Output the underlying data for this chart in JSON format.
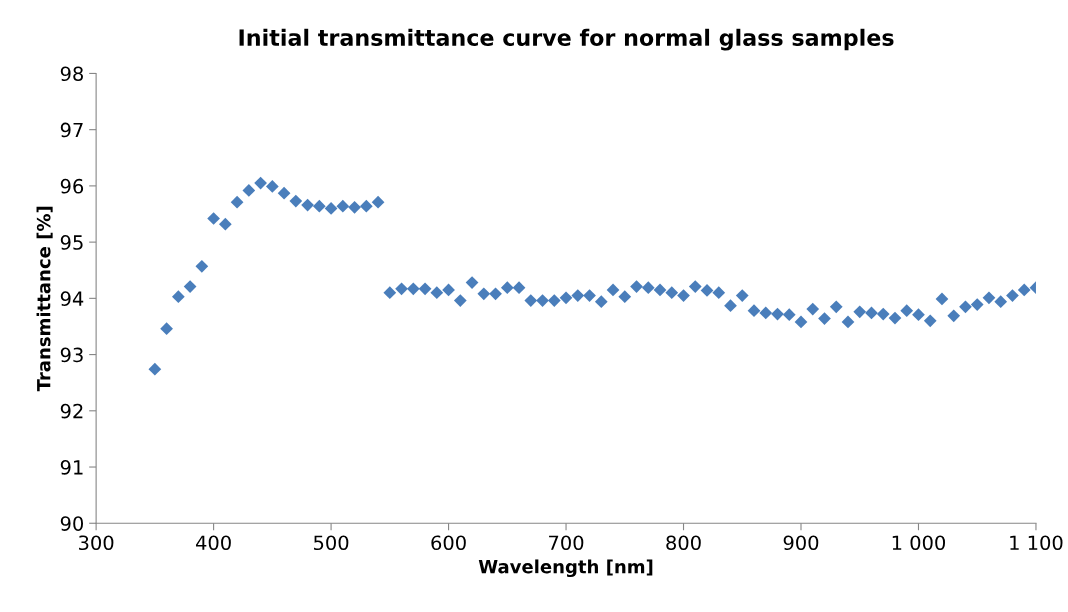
{
  "chart_data": {
    "type": "scatter",
    "title": "Initial transmittance curve for normal glass samples",
    "xlabel": "Wavelength [nm]",
    "ylabel": "Transmittance [%]",
    "x": [
      350,
      360,
      370,
      380,
      390,
      400,
      410,
      420,
      430,
      440,
      450,
      460,
      470,
      480,
      490,
      500,
      510,
      520,
      530,
      540,
      550,
      560,
      570,
      580,
      590,
      600,
      610,
      620,
      630,
      640,
      650,
      660,
      670,
      680,
      690,
      700,
      710,
      720,
      730,
      740,
      750,
      760,
      770,
      780,
      790,
      800,
      810,
      820,
      830,
      840,
      850,
      860,
      870,
      880,
      890,
      900,
      910,
      920,
      930,
      940,
      950,
      960,
      970,
      980,
      990,
      1000,
      1010,
      1020,
      1030,
      1040,
      1050,
      1060,
      1070,
      1080,
      1090,
      1100
    ],
    "series": [
      {
        "color": "#4a7ebb",
        "values": [
          92.74,
          93.46,
          94.03,
          94.21,
          94.57,
          95.42,
          95.32,
          95.71,
          95.92,
          96.05,
          95.99,
          95.87,
          95.73,
          95.66,
          95.64,
          95.6,
          95.64,
          95.62,
          95.64,
          95.71,
          94.1,
          94.17,
          94.17,
          94.17,
          94.1,
          94.15,
          93.96,
          94.28,
          94.08,
          94.08,
          94.19,
          94.19,
          93.96,
          93.96,
          93.96,
          94.01,
          94.05,
          94.05,
          93.94,
          94.15,
          94.03,
          94.21,
          94.19,
          94.15,
          94.1,
          94.05,
          94.21,
          94.14,
          94.1,
          93.87,
          94.05,
          93.78,
          93.74,
          93.72,
          93.71,
          93.58,
          93.81,
          93.64,
          93.85,
          93.58,
          93.76,
          93.74,
          93.72,
          93.65,
          93.78,
          93.71,
          93.6,
          93.99,
          93.69,
          93.85,
          93.89,
          94.01,
          93.94,
          94.05,
          94.15,
          94.19
        ]
      }
    ],
    "marker": "diamond",
    "xlim": [
      300,
      1100
    ],
    "xticks": [
      300,
      400,
      500,
      600,
      700,
      800,
      900,
      {
        "value": 1000,
        "label": "1 000"
      },
      {
        "value": 1100,
        "label": "1 100"
      }
    ],
    "ylim": [
      90,
      98
    ],
    "yticks": [
      90,
      91,
      92,
      93,
      94,
      95,
      96,
      97,
      98
    ],
    "grid": false,
    "legend": false
  }
}
